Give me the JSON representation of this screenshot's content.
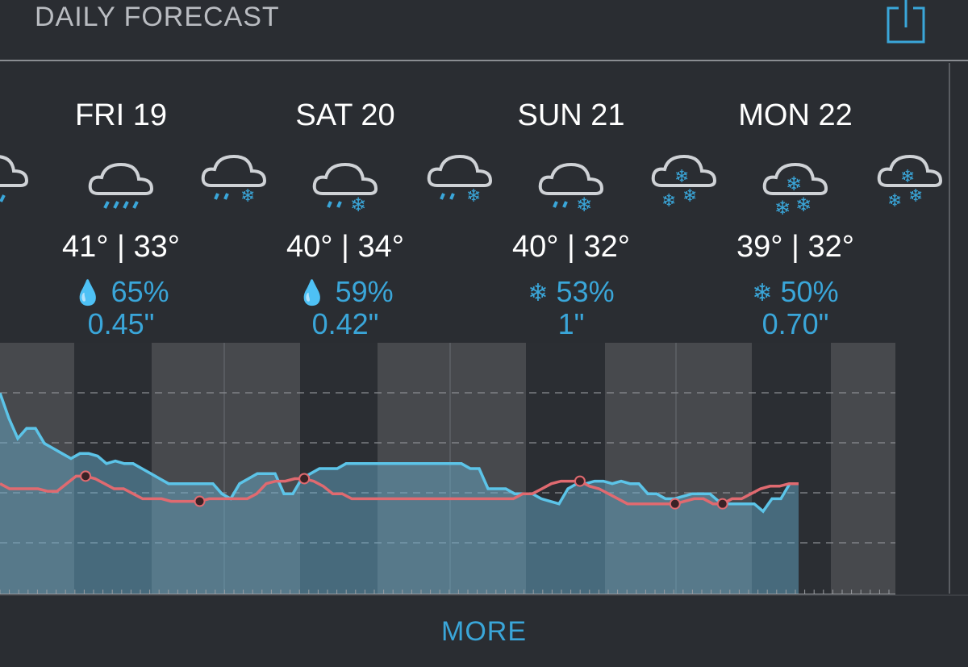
{
  "header": {
    "title": "DAILY FORECAST",
    "share_icon": "share-icon"
  },
  "days": [
    {
      "label": "FRI 19",
      "icon": "rain-icon",
      "temps": "41° | 33°",
      "precip_type": "rain",
      "precip_glyph": "💧",
      "precip_pct": "65%",
      "precip_amount": "0.45\""
    },
    {
      "label": "SAT 20",
      "icon": "rain-snow-icon",
      "temps": "40° | 34°",
      "precip_type": "rain",
      "precip_glyph": "💧",
      "precip_pct": "59%",
      "precip_amount": "0.42\""
    },
    {
      "label": "SUN 21",
      "icon": "rain-snow-icon",
      "temps": "40° | 32°",
      "precip_type": "snow",
      "precip_glyph": "❄",
      "precip_pct": "53%",
      "precip_amount": "1\""
    },
    {
      "label": "MON 22",
      "icon": "snow-icon",
      "temps": "39° | 32°",
      "precip_type": "snow",
      "precip_glyph": "❄",
      "precip_pct": "50%",
      "precip_amount": "0.70\""
    }
  ],
  "colors": {
    "accent": "#3aa6d9",
    "background": "#2a2d32",
    "temperature_line": "#e06a70",
    "humidity_line": "#5cc4e8"
  },
  "chart_data": {
    "type": "line",
    "series": [
      {
        "values": [
          0.8,
          0.7,
          0.62,
          0.66,
          0.66,
          0.6,
          0.58,
          0.56,
          0.54,
          0.56,
          0.56,
          0.55,
          0.52,
          0.53,
          0.52,
          0.52,
          0.5,
          0.48,
          0.46,
          0.44,
          0.44,
          0.44,
          0.44,
          0.44,
          0.44,
          0.4,
          0.38,
          0.44,
          0.46,
          0.48,
          0.48,
          0.48,
          0.4,
          0.4,
          0.46,
          0.48,
          0.5,
          0.5,
          0.5,
          0.52,
          0.52,
          0.52,
          0.52,
          0.52,
          0.52,
          0.52,
          0.52,
          0.52,
          0.52,
          0.52,
          0.52,
          0.52,
          0.52,
          0.5,
          0.5,
          0.42,
          0.42,
          0.42,
          0.4,
          0.4,
          0.4,
          0.38,
          0.37,
          0.36,
          0.42,
          0.44,
          0.44,
          0.45,
          0.45,
          0.44,
          0.45,
          0.44,
          0.44,
          0.4,
          0.4,
          0.38,
          0.38,
          0.39,
          0.4,
          0.4,
          0.4,
          0.37,
          0.36,
          0.36,
          0.36,
          0.36,
          0.33,
          0.38,
          0.38,
          0.44,
          0.44
        ]
      },
      {
        "values": [
          0.44,
          0.42,
          0.42,
          0.42,
          0.42,
          0.41,
          0.41,
          0.44,
          0.47,
          0.47,
          0.46,
          0.44,
          0.42,
          0.42,
          0.4,
          0.38,
          0.38,
          0.38,
          0.37,
          0.37,
          0.37,
          0.37,
          0.38,
          0.38,
          0.38,
          0.38,
          0.38,
          0.4,
          0.44,
          0.45,
          0.45,
          0.46,
          0.46,
          0.45,
          0.43,
          0.4,
          0.4,
          0.38,
          0.38,
          0.38,
          0.38,
          0.38,
          0.38,
          0.38,
          0.38,
          0.38,
          0.38,
          0.38,
          0.38,
          0.38,
          0.38,
          0.38,
          0.38,
          0.38,
          0.38,
          0.4,
          0.4,
          0.42,
          0.44,
          0.45,
          0.45,
          0.45,
          0.43,
          0.42,
          0.4,
          0.38,
          0.36,
          0.36,
          0.36,
          0.36,
          0.36,
          0.36,
          0.37,
          0.38,
          0.38,
          0.36,
          0.36,
          0.38,
          0.38,
          0.4,
          0.42,
          0.43,
          0.43,
          0.44,
          0.44
        ]
      }
    ],
    "ylim": [
      0,
      1
    ],
    "grid": true
  },
  "footer": {
    "more_label": "MORE"
  }
}
